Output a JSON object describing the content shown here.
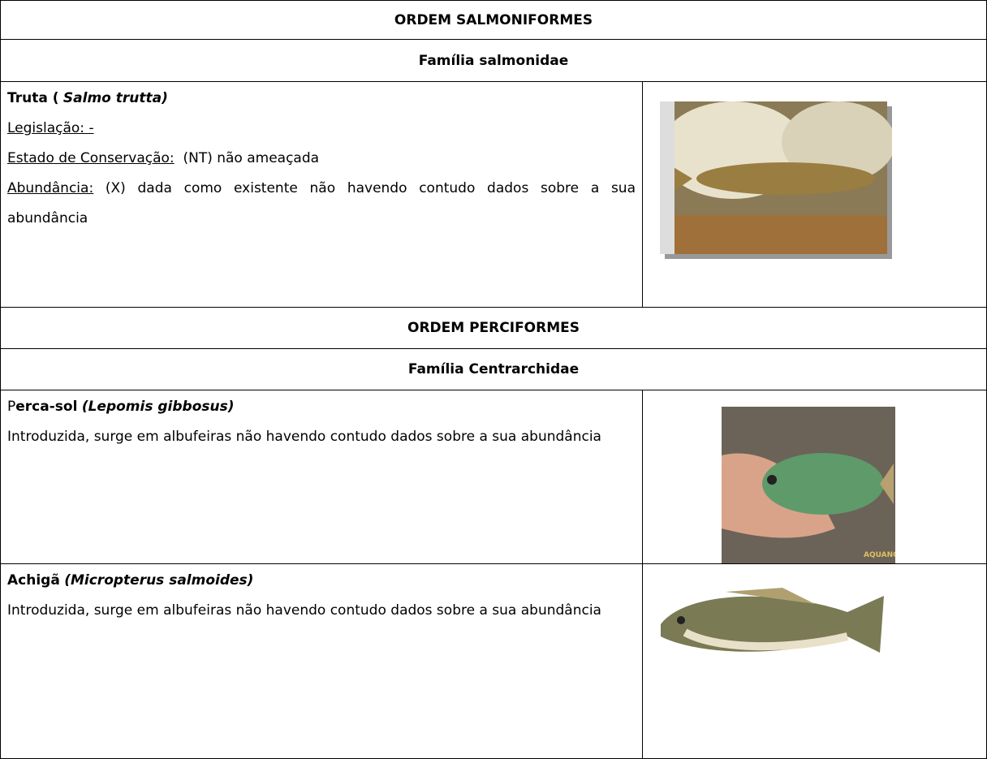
{
  "sections": [
    {
      "order": "ORDEM SALMONIFORMES",
      "family": "Família salmonidae",
      "species": [
        {
          "name": "Truta (",
          "scientific": "Salmo trutta)",
          "legislation": "Legislação: -",
          "status_label": "Estado de Conservação:",
          "status": "(NT) não ameaçada",
          "abundance_label": "Abundância:",
          "abundance": "(X) dada como existente não havendo contudo dados sobre a sua abundância"
        }
      ]
    },
    {
      "order": "ORDEM PERCIFORMES",
      "family": "Família Centrarchidae",
      "species": [
        {
          "name_initial": "P",
          "name": "erca-sol",
          "scientific": "(Lepomis gibbosus)",
          "description": "Introduzida, surge em albufeiras não havendo contudo dados sobre a sua abundância"
        },
        {
          "name": "Achigã",
          "scientific": "(Micropterus salmoides)",
          "description": "Introduzida, surge em albufeiras não havendo contudo dados sobre a sua abundância"
        }
      ]
    }
  ]
}
